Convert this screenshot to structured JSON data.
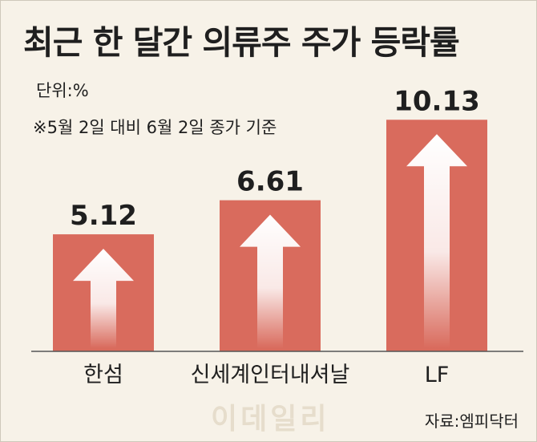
{
  "title": "최근 한 달간 의류주 주가 등락률",
  "unit": "단위:%",
  "note": "※5월 2일 대비 6월 2일 종가 기준",
  "source": "자료:엠피닥터",
  "watermark": "이데일리",
  "colors": {
    "bar": "#d96b5d",
    "background": "#f7f2e8",
    "arrow": "#ffffff"
  },
  "chart_data": {
    "type": "bar",
    "categories": [
      "한섬",
      "신세계인터내셔날",
      "LF"
    ],
    "values": [
      5.12,
      6.61,
      10.13
    ],
    "value_labels": [
      "5.12",
      "6.61",
      "10.13"
    ],
    "ylim": [
      0,
      11
    ],
    "grid": false
  }
}
